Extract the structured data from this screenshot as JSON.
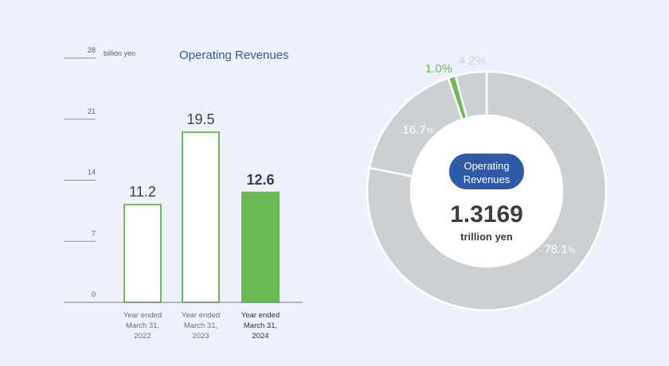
{
  "colors": {
    "background": "#eef1fb",
    "accent_green": "#6abb55",
    "title_blue": "#2e5aa8",
    "donut_gray": "#cdd0d3",
    "axis_gray": "#8a8f96",
    "text_dark": "#3a3f45"
  },
  "chart_data": [
    {
      "type": "bar",
      "title": "Operating Revenues",
      "unit_label": "billion yen",
      "ylim": [
        0,
        28
      ],
      "yticks": [
        0,
        7,
        14,
        21,
        28
      ],
      "categories": [
        [
          "Year ended",
          "March 31,",
          "2022"
        ],
        [
          "Year ended",
          "March 31,",
          "2023"
        ],
        [
          "Year ended",
          "March 31,",
          "2024"
        ]
      ],
      "values": [
        11.2,
        19.5,
        12.6
      ],
      "value_labels": [
        "11.2",
        "19.5",
        "12.6"
      ],
      "highlight_index": 2
    },
    {
      "type": "pie",
      "style": "donut",
      "center_badge": [
        "Operating",
        "Revenues"
      ],
      "center_value": "1.3169",
      "center_unit": "trillion yen",
      "slices": [
        {
          "value": 78.1,
          "label": "78.1",
          "suffix": "%",
          "highlight": false
        },
        {
          "value": 16.7,
          "label": "16.7",
          "suffix": "%",
          "highlight": false
        },
        {
          "value": 1.0,
          "label": "1.0%",
          "suffix": "",
          "highlight": true
        },
        {
          "value": 4.2,
          "label": "4.2%",
          "suffix": "",
          "highlight": false
        }
      ]
    }
  ]
}
